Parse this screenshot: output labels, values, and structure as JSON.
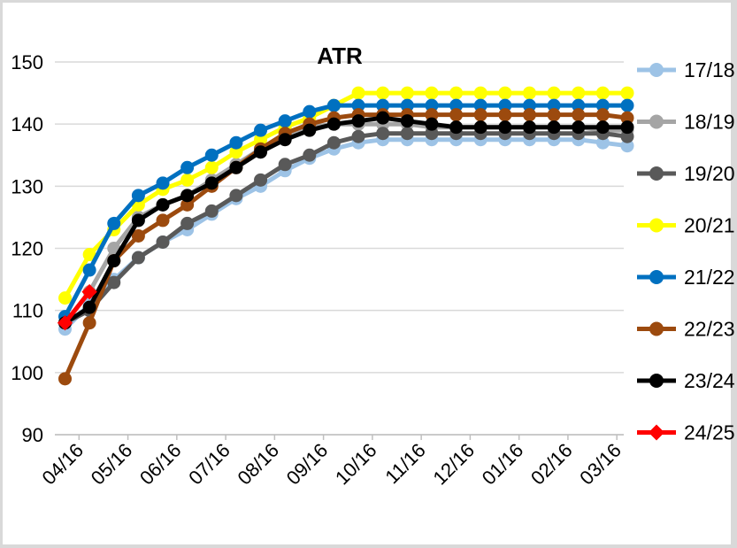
{
  "chart_data": {
    "type": "line",
    "title": "ATR",
    "xlabel": "",
    "ylabel": "",
    "ylim": [
      90,
      150
    ],
    "yticks": [
      90,
      100,
      110,
      120,
      130,
      140,
      150
    ],
    "grid": "horizontal",
    "legend_position": "right",
    "x_labels": [
      "04/16",
      "05/16",
      "06/16",
      "07/16",
      "08/16",
      "09/16",
      "10/16",
      "11/16",
      "12/16",
      "01/16",
      "02/16",
      "03/16"
    ],
    "x_points_per_label": 2,
    "series": [
      {
        "name": "17/18",
        "color": "#9dc3e6",
        "marker": "circle",
        "values": [
          107,
          111,
          115,
          118.5,
          121,
          123,
          125.5,
          128,
          130,
          132.5,
          134.5,
          136,
          137,
          137.5,
          137.5,
          137.5,
          137.5,
          137.5,
          137.5,
          137.5,
          137.5,
          137.5,
          137,
          136.5
        ]
      },
      {
        "name": "18/19",
        "color": "#a5a5a5",
        "marker": "circle",
        "values": [
          108,
          113,
          120,
          125,
          127,
          128.5,
          131,
          133.5,
          136,
          138,
          139.5,
          140,
          140,
          140,
          140,
          139.5,
          139.5,
          139.5,
          139.5,
          139.5,
          139.5,
          139.5,
          139,
          139
        ]
      },
      {
        "name": "19/20",
        "color": "#595959",
        "marker": "circle",
        "values": [
          108,
          110,
          114.5,
          118.5,
          121,
          124,
          126,
          128.5,
          131,
          133.5,
          135,
          137,
          138,
          138.5,
          138.5,
          138.5,
          138.5,
          138.5,
          138.5,
          138.5,
          138.5,
          138.5,
          138.5,
          138
        ]
      },
      {
        "name": "20/21",
        "color": "#ffff00",
        "marker": "circle",
        "values": [
          112,
          119,
          123,
          127,
          129.5,
          131,
          133,
          135.5,
          137.5,
          139.5,
          141,
          143,
          145,
          145,
          145,
          145,
          145,
          145,
          145,
          145,
          145,
          145,
          145,
          145
        ]
      },
      {
        "name": "21/22",
        "color": "#0070c0",
        "marker": "circle",
        "values": [
          109,
          116.5,
          124,
          128.5,
          130.5,
          133,
          135,
          137,
          139,
          140.5,
          142,
          143,
          143,
          143,
          143,
          143,
          143,
          143,
          143,
          143,
          143,
          143,
          143,
          143
        ]
      },
      {
        "name": "22/23",
        "color": "#9c4a0e",
        "marker": "circle",
        "values": [
          99,
          108,
          118,
          122,
          124.5,
          127,
          130,
          133,
          136,
          138.5,
          140,
          141,
          141.5,
          141.5,
          141.5,
          141.5,
          141.5,
          141.5,
          141.5,
          141.5,
          141.5,
          141.5,
          141.5,
          141
        ]
      },
      {
        "name": "23/24",
        "color": "#000000",
        "marker": "circle",
        "values": [
          108,
          110.5,
          118,
          124.5,
          127,
          128.5,
          130.5,
          133,
          135.5,
          137.5,
          139,
          140,
          140.5,
          141,
          140.5,
          140,
          139.5,
          139.5,
          139.5,
          139.5,
          139.5,
          139.5,
          139.5,
          139.5
        ]
      },
      {
        "name": "24/25",
        "color": "#ff0000",
        "marker": "diamond",
        "values": [
          108,
          113
        ]
      }
    ]
  }
}
